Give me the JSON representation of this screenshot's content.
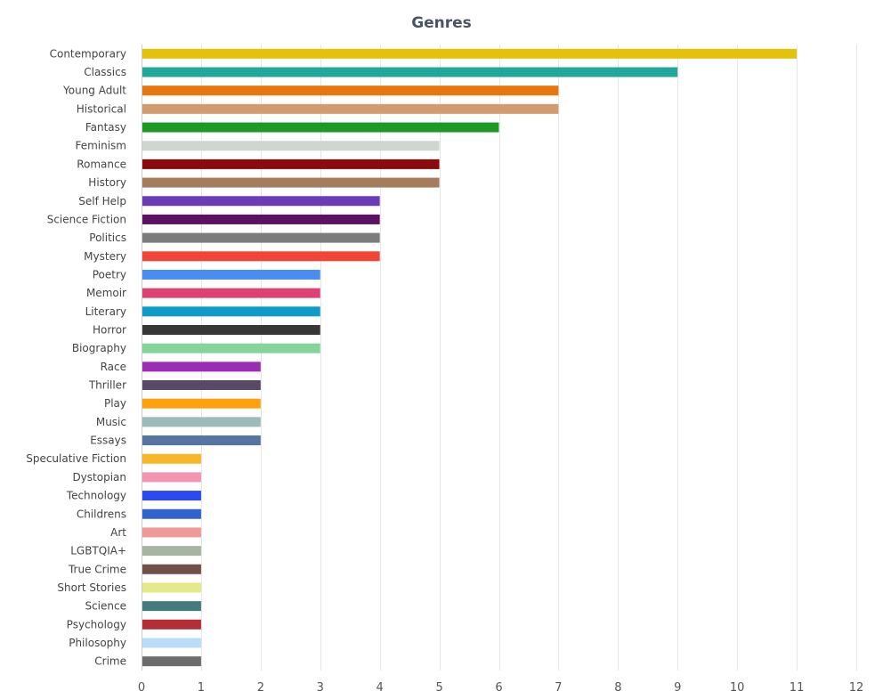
{
  "chart_data": {
    "type": "bar",
    "orientation": "horizontal",
    "title": "Genres",
    "xlabel": "",
    "ylabel": "",
    "xlim": [
      0,
      12
    ],
    "x_ticks": [
      "0",
      "1",
      "2",
      "3",
      "4",
      "5",
      "6",
      "7",
      "8",
      "9",
      "10",
      "11",
      "12"
    ],
    "grid": true,
    "legend": "none",
    "categories": [
      "Contemporary",
      "Classics",
      "Young Adult",
      "Historical",
      "Fantasy",
      "Feminism",
      "Romance",
      "History",
      "Self Help",
      "Science Fiction",
      "Politics",
      "Mystery",
      "Poetry",
      "Memoir",
      "Literary",
      "Horror",
      "Biography",
      "Race",
      "Thriller",
      "Play",
      "Music",
      "Essays",
      "Speculative Fiction",
      "Dystopian",
      "Technology",
      "Childrens",
      "Art",
      "LGBTQIA+",
      "True Crime",
      "Short Stories",
      "Science",
      "Psychology",
      "Philosophy",
      "Crime"
    ],
    "values": [
      11,
      9,
      7,
      7,
      6,
      5,
      5,
      5,
      4,
      4,
      4,
      4,
      3,
      3,
      3,
      3,
      3,
      2,
      2,
      2,
      2,
      2,
      1,
      1,
      1,
      1,
      1,
      1,
      1,
      1,
      1,
      1,
      1,
      1
    ],
    "colors": [
      "#e4c20b",
      "#22a89a",
      "#e8760e",
      "#d49b6e",
      "#1c9a24",
      "#cfd6d0",
      "#8b0a0e",
      "#a57c5e",
      "#6a3db5",
      "#5b1263",
      "#7c7c7c",
      "#ef4637",
      "#4a8df0",
      "#dc4374",
      "#0f9ac8",
      "#373737",
      "#85d59a",
      "#9b2cb5",
      "#5a4867",
      "#ffa10c",
      "#9bbcbb",
      "#5674a0",
      "#f8b729",
      "#f394b0",
      "#2b4bf0",
      "#3064cc",
      "#ee9b98",
      "#a5b5a2",
      "#705048",
      "#e4e98a",
      "#457a80",
      "#b52e33",
      "#b9ddf8",
      "#6c6c6c"
    ]
  }
}
